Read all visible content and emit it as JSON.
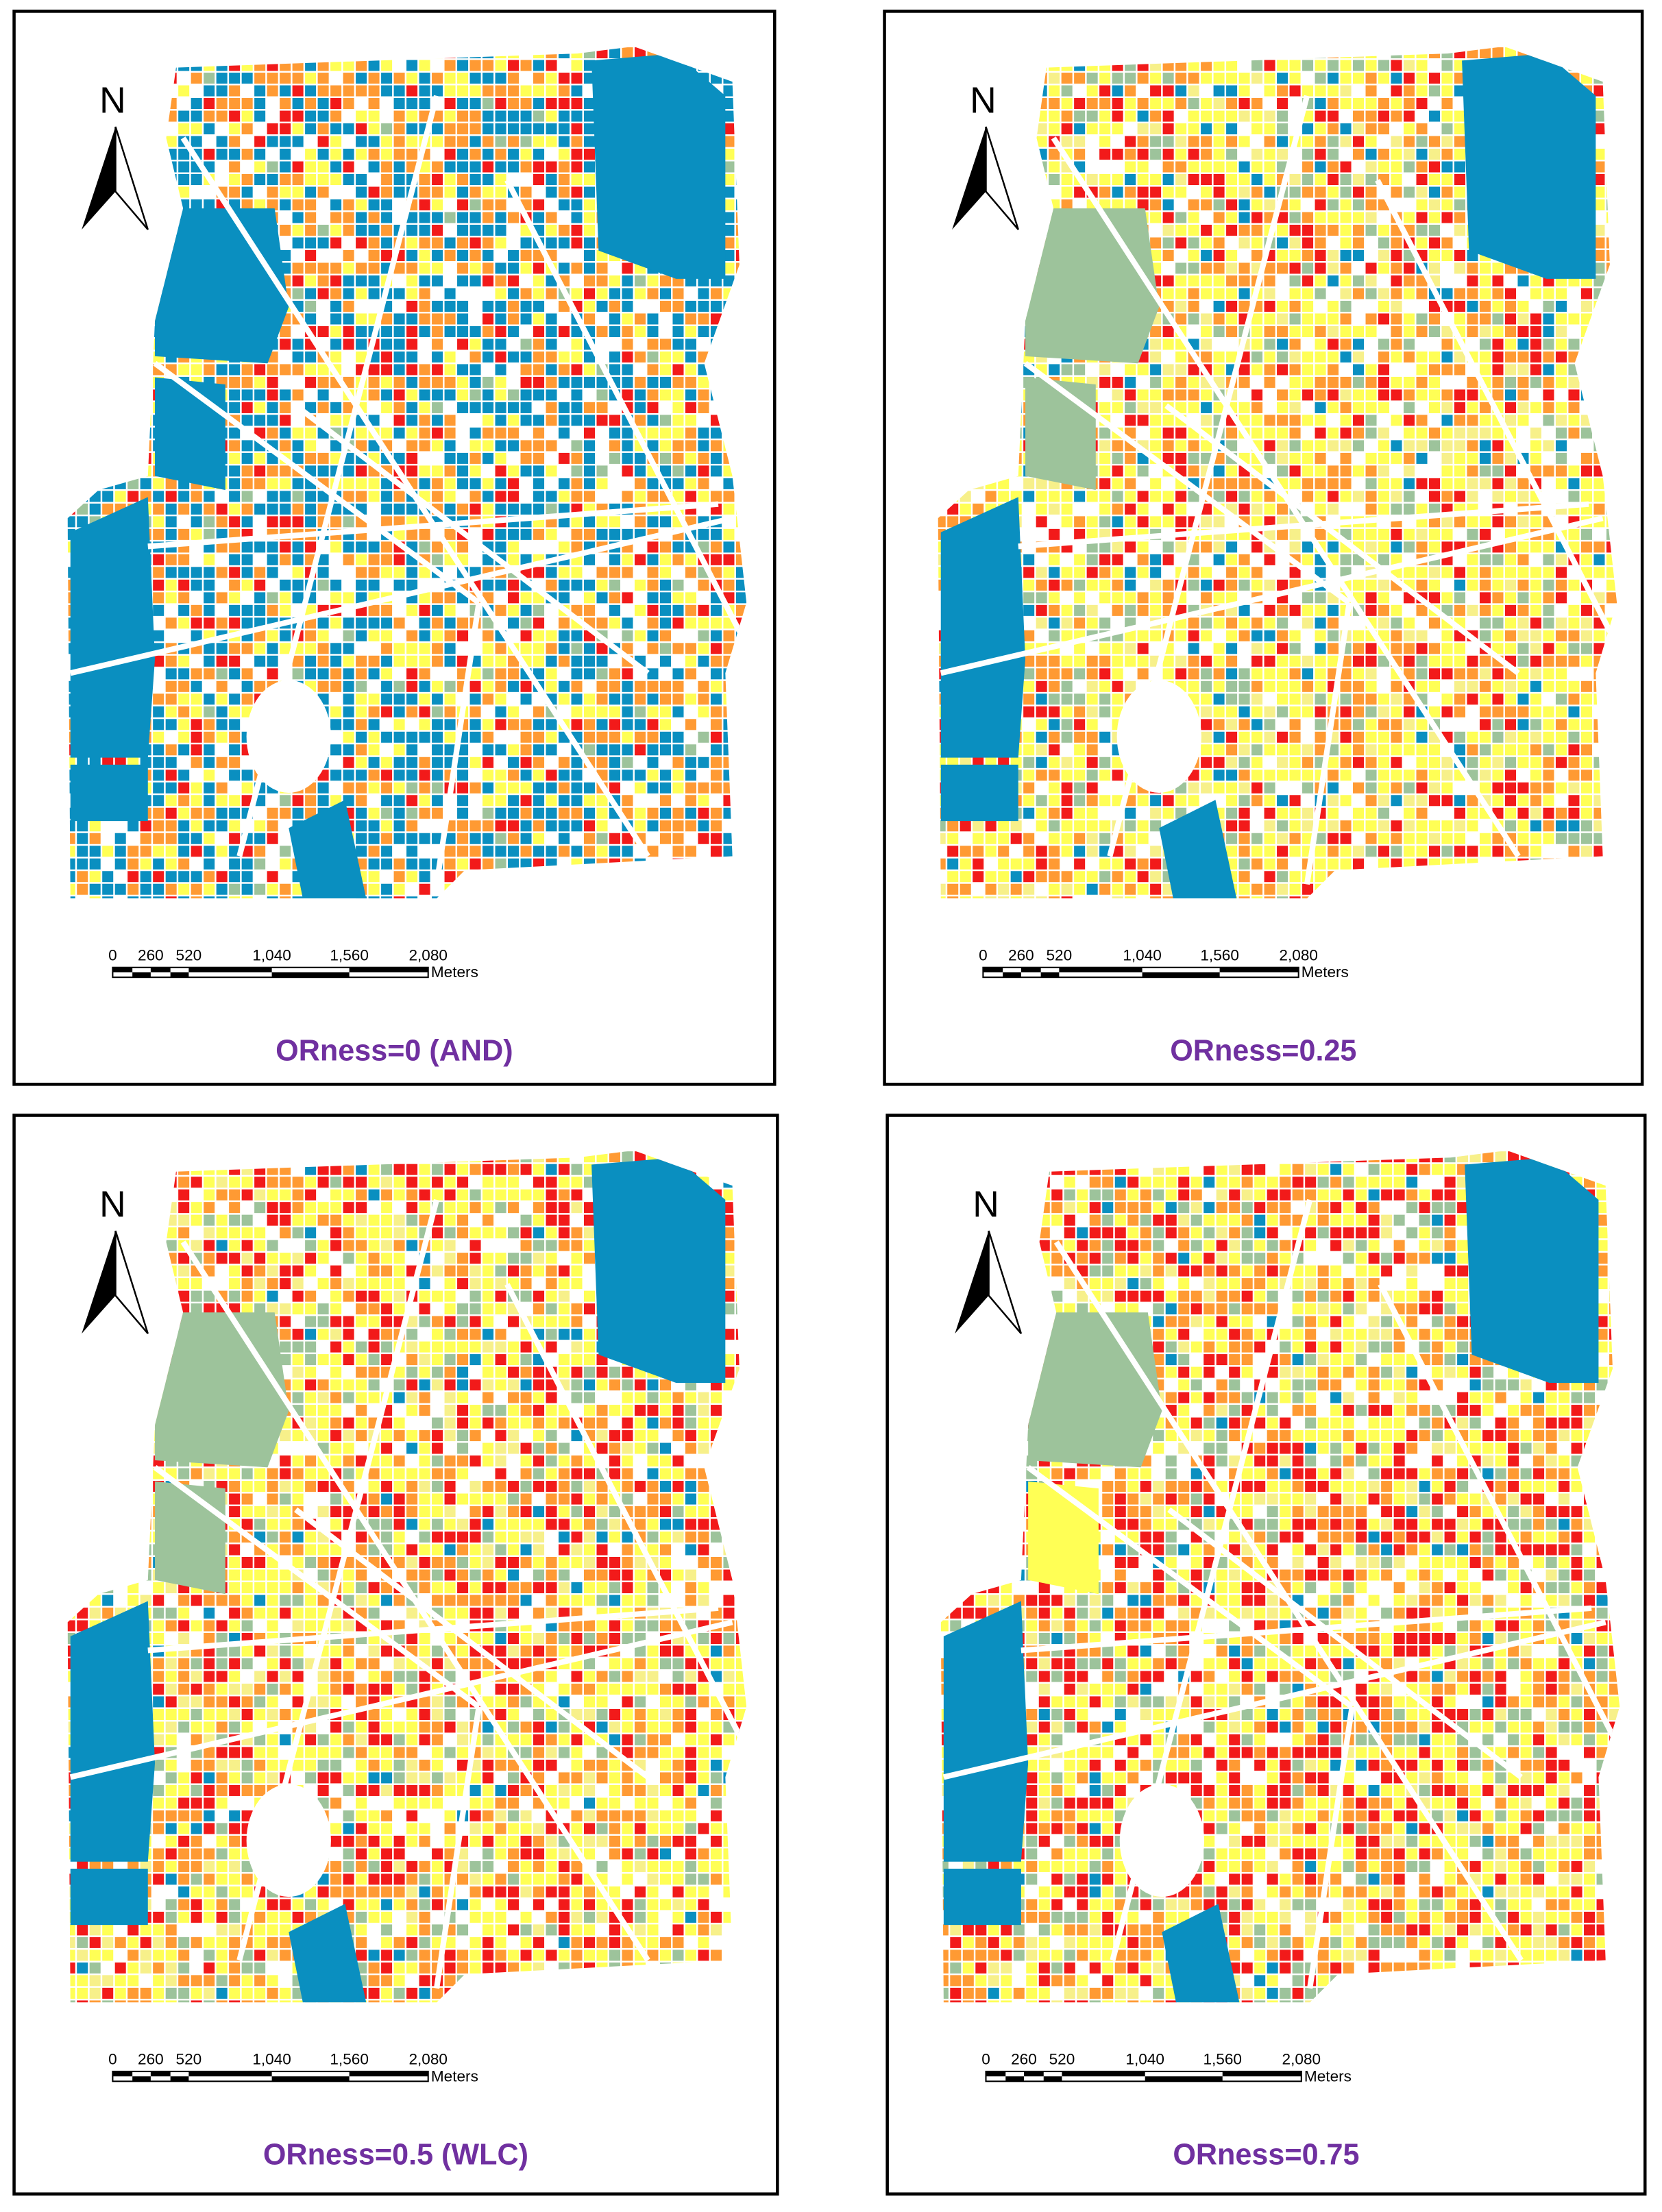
{
  "panels": [
    {
      "north": "N",
      "scale_labels": [
        "0",
        "260",
        "520",
        "1,040",
        "1,560",
        "2,080"
      ],
      "scale_unit": "Meters",
      "caption": "ORness=0 (AND)"
    },
    {
      "north": "N",
      "scale_labels": [
        "0",
        "260",
        "520",
        "1,040",
        "1,560",
        "2,080"
      ],
      "scale_unit": "Meters",
      "caption": "ORness=0.25"
    },
    {
      "north": "N",
      "scale_labels": [
        "0",
        "260",
        "520",
        "1,040",
        "1,560",
        "2,080"
      ],
      "scale_unit": "Meters",
      "caption": "ORness=0.5 (WLC)"
    },
    {
      "north": "N",
      "scale_labels": [
        "0",
        "260",
        "520",
        "1,040",
        "1,560",
        "2,080"
      ],
      "scale_unit": "Meters",
      "caption": "ORness=0.75"
    }
  ]
}
